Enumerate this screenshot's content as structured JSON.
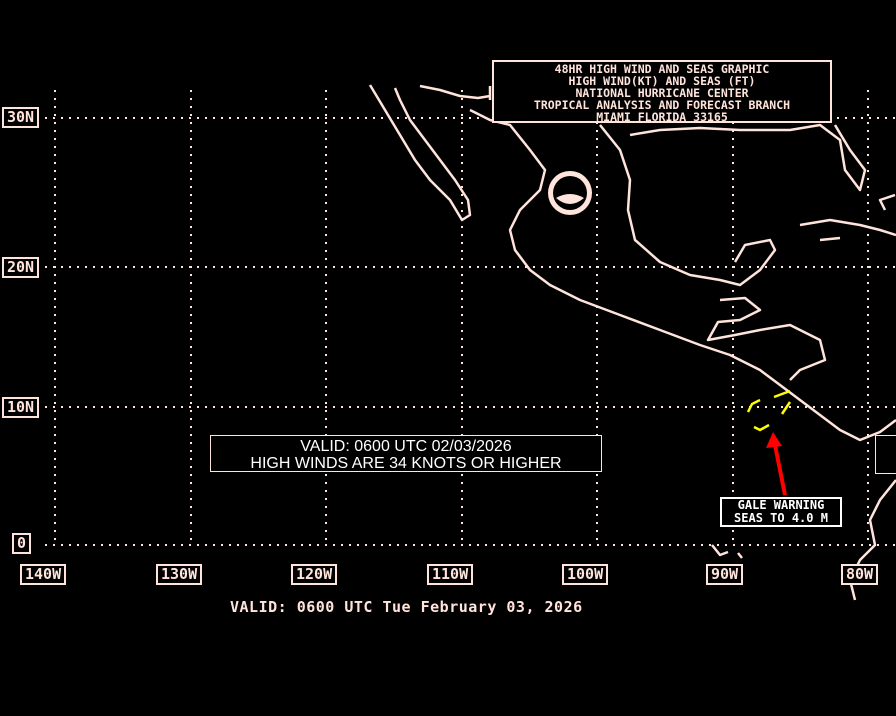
{
  "title_box": {
    "lines": [
      "48HR HIGH WIND AND SEAS GRAPHIC",
      "HIGH WIND(KT) AND SEAS (FT)",
      "NATIONAL HURRICANE CENTER",
      "TROPICAL ANALYSIS AND FORECAST BRANCH",
      "MIAMI FLORIDA  33165"
    ]
  },
  "lat_labels": [
    "30N",
    "20N",
    "10N",
    "0"
  ],
  "lon_labels": [
    "140W",
    "130W",
    "120W",
    "110W",
    "100W",
    "90W",
    "80W"
  ],
  "valid_box": {
    "line1": "VALID: 0600 UTC  02/03/2026",
    "line2": "HIGH WINDS ARE 34 KNOTS OR HIGHER"
  },
  "warning": {
    "line1": "GALE WARNING",
    "line2": "SEAS TO 4.0 M",
    "area_color": "#ffff00",
    "arrow_color": "#ff0000"
  },
  "bottom_valid": "VALID: 0600 UTC Tue February 03, 2026",
  "logo": "NOAA",
  "colors": {
    "land": "#ffe4dc",
    "background": "#000000"
  }
}
